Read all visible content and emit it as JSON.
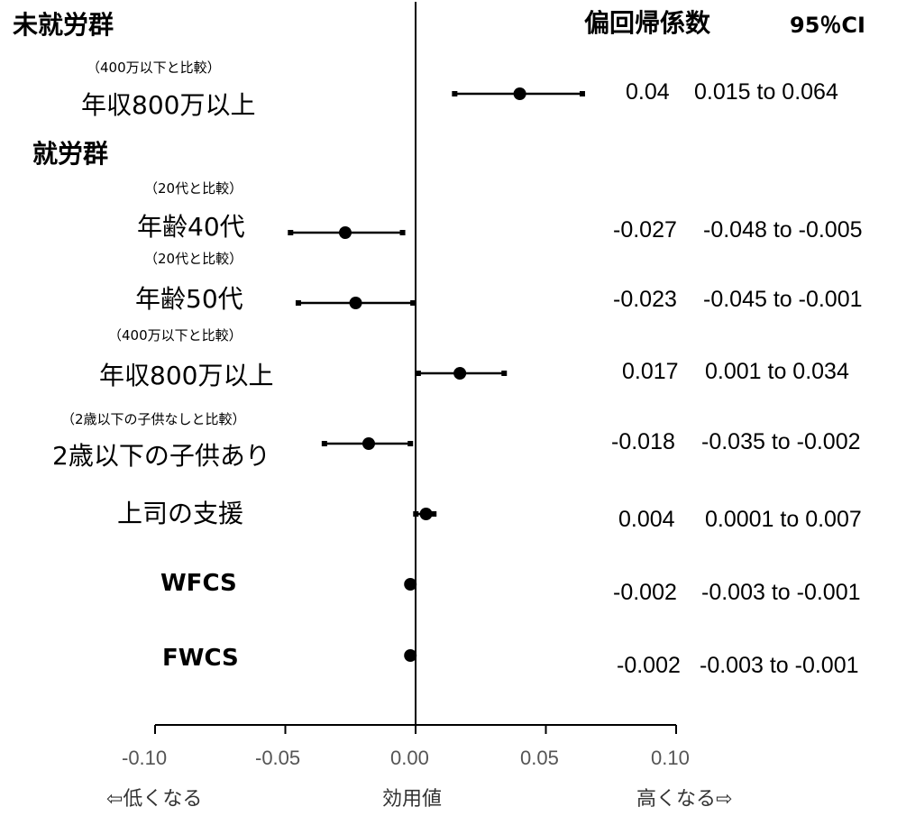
{
  "headers": {
    "group_nonworking": "未就労群",
    "group_working": "就労群",
    "coef": "偏回帰係数",
    "ci": "95％CI"
  },
  "axis": {
    "ticks": [
      "-0.10",
      "-0.05",
      "0.00",
      "0.05",
      "0.10"
    ],
    "low_label": "⇦低くなる",
    "xlabel": "効用値",
    "high_label": "高くなる⇨"
  },
  "rows": [
    {
      "ref": "（400万以下と比較）",
      "label": "年収800万以上",
      "coef": "0.04",
      "ci": "0.015 to 0.064"
    },
    {
      "ref": "（20代と比較）",
      "label": "年齢40代",
      "coef": "-0.027",
      "ci": "-0.048 to -0.005"
    },
    {
      "ref": "（20代と比較）",
      "label": "年齢50代",
      "coef": "-0.023",
      "ci": "-0.045 to -0.001"
    },
    {
      "ref": "（400万以下と比較）",
      "label": "年収800万以上",
      "coef": "0.017",
      "ci": "0.001 to 0.034"
    },
    {
      "ref": "（2歳以下の子供なしと比較）",
      "label": "2歳以下の子供あり",
      "coef": "-0.018",
      "ci": "-0.035 to -0.002"
    },
    {
      "ref": "",
      "label": "上司の支援",
      "coef": "0.004",
      "ci": "0.0001 to 0.007"
    },
    {
      "ref": "",
      "label": "WFCS",
      "coef": "-0.002",
      "ci": "-0.003 to -0.001"
    },
    {
      "ref": "",
      "label": "FWCS",
      "coef": "-0.002",
      "ci": "-0.003 to -0.001"
    }
  ],
  "chart_data": {
    "type": "forest",
    "xlim": [
      -0.1,
      0.1
    ],
    "xticks": [
      -0.1,
      -0.05,
      0,
      0.05,
      0.1
    ],
    "points": [
      {
        "estimate": 0.04,
        "lower": 0.015,
        "upper": 0.064
      },
      {
        "estimate": -0.027,
        "lower": -0.048,
        "upper": -0.005
      },
      {
        "estimate": -0.023,
        "lower": -0.045,
        "upper": -0.001
      },
      {
        "estimate": 0.017,
        "lower": 0.001,
        "upper": 0.034
      },
      {
        "estimate": -0.018,
        "lower": -0.035,
        "upper": -0.002
      },
      {
        "estimate": 0.004,
        "lower": 0.0001,
        "upper": 0.007
      },
      {
        "estimate": -0.002,
        "lower": -0.003,
        "upper": -0.001
      },
      {
        "estimate": -0.002,
        "lower": -0.003,
        "upper": -0.001
      }
    ],
    "reference_line": 0
  }
}
